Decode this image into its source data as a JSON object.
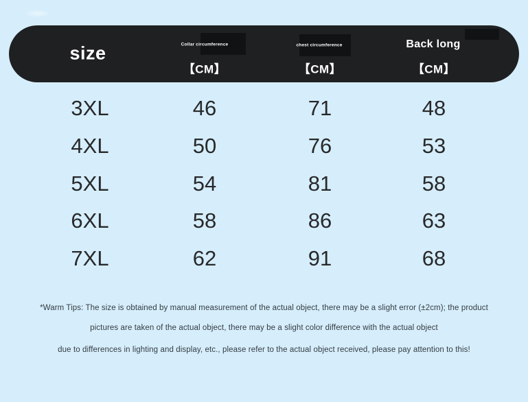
{
  "colors": {
    "background": "#d6eefb",
    "header_bg": "#1f2022",
    "header_text": "#ffffff",
    "body_text": "#28292b",
    "footnote_text": "#333b42"
  },
  "header": {
    "size_label": "size",
    "columns": [
      {
        "title": "Collar circumference",
        "unit": "【CM】"
      },
      {
        "title": "chest circumference",
        "unit": "【CM】"
      },
      {
        "title": "Back long",
        "unit": "【CM】"
      }
    ]
  },
  "table": {
    "rows": [
      {
        "size": "3XL",
        "collar": "46",
        "chest": "71",
        "back": "48"
      },
      {
        "size": "4XL",
        "collar": "50",
        "chest": "76",
        "back": "53"
      },
      {
        "size": "5XL",
        "collar": "54",
        "chest": "81",
        "back": "58"
      },
      {
        "size": "6XL",
        "collar": "58",
        "chest": "86",
        "back": "63"
      },
      {
        "size": "7XL",
        "collar": "62",
        "chest": "91",
        "back": "68"
      }
    ]
  },
  "footnote": {
    "line1": "*Warm Tips: The size is obtained by manual measurement of the actual object, there may be a slight error (±2cm); the product",
    "line2": "pictures are taken of the actual object, there may be a slight color difference with the actual object",
    "line3": "due to differences in lighting and display, etc., please refer to the actual object received, please pay attention to this!"
  },
  "chart_data": {
    "type": "table",
    "title": "size",
    "columns": [
      "size",
      "Collar circumference 【CM】",
      "chest circumference 【CM】",
      "Back long 【CM】"
    ],
    "rows": [
      [
        "3XL",
        46,
        71,
        48
      ],
      [
        "4XL",
        50,
        76,
        53
      ],
      [
        "5XL",
        54,
        81,
        58
      ],
      [
        "6XL",
        58,
        86,
        63
      ],
      [
        "7XL",
        62,
        91,
        68
      ]
    ]
  }
}
